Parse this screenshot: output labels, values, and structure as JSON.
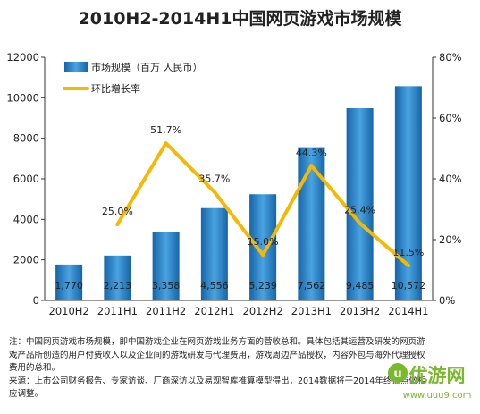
{
  "chart_data": {
    "type": "bar+line",
    "title": "2010H2-2014H1中国网页游戏市场规模",
    "categories": [
      "2010H2",
      "2011H1",
      "2011H2",
      "2012H1",
      "2012H2",
      "2013H1",
      "2013H2",
      "2014H1"
    ],
    "series": [
      {
        "name": "市场规模（百万 人民币）",
        "type": "bar",
        "axis": "left",
        "values": [
          1770,
          2213,
          3358,
          4556,
          5239,
          7562,
          9485,
          10572
        ],
        "labels": [
          "1,770",
          "2,213",
          "3,358",
          "4,556",
          "5,239",
          "7,562",
          "9,485",
          "10,572"
        ],
        "color": "#1f6fb5"
      },
      {
        "name": "环比增长率",
        "type": "line",
        "axis": "right",
        "values": [
          null,
          25.0,
          51.7,
          35.7,
          15.0,
          44.3,
          25.4,
          11.5
        ],
        "labels": [
          "",
          "25.0%",
          "51.7%",
          "35.7%",
          "15.0%",
          "44.3%",
          "25.4%",
          "11.5%"
        ],
        "color": "#f6b800"
      }
    ],
    "y_left": {
      "min": 0,
      "max": 12000,
      "ticks": [
        "0",
        "2000",
        "4000",
        "6000",
        "8000",
        "10000",
        "12000"
      ]
    },
    "y_right": {
      "min": 0,
      "max": 80,
      "ticks": [
        "0%",
        "20%",
        "40%",
        "60%",
        "80%"
      ]
    },
    "grid": false,
    "legend": "top-left"
  },
  "notes": {
    "line1": "注：中国网页游戏市场规模，即中国游戏企业在网页游戏业务方面的营收总和。具体包括其运营及研发的网页游戏产品所创造的用户付费收入以及企业间的游戏研发与代理费用，游戏周边产品授权，内容外包与海外代理授权费用的总和。",
    "line2": "来源：上市公司财务报告、专家访谈、厂商深访以及易观智库推算模型得出，2014数据将于2014年终盘点做相应调整。"
  },
  "watermark": {
    "text": "优游网",
    "subtext": "www.uuu9.com",
    "color": "#7ab82c"
  }
}
